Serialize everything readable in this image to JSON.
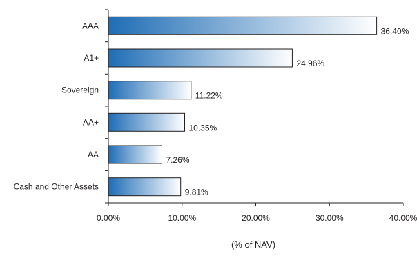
{
  "chart_data": {
    "type": "bar",
    "orientation": "horizontal",
    "categories": [
      "AAA",
      "A1+",
      "Sovereign",
      "AA+",
      "AA",
      "Cash and Other Assets"
    ],
    "values": [
      36.4,
      24.96,
      11.22,
      10.35,
      7.26,
      9.81
    ],
    "value_labels": [
      "36.40%",
      "24.96%",
      "11.22%",
      "10.35%",
      "7.26%",
      "9.81%"
    ],
    "xticks": [
      0,
      10,
      20,
      30,
      40
    ],
    "xtick_labels": [
      "0.00%",
      "10.00%",
      "20.00%",
      "30.00%",
      "40.00%"
    ],
    "xlim": [
      0,
      40
    ],
    "title": "",
    "xlabel": "(% of NAV)",
    "ylabel": "",
    "grid": false,
    "colors": {
      "bar_start": "#1f6db5",
      "bar_end": "#ffffff",
      "bar_stroke": "#231f20",
      "axis": "#231f20",
      "text": "#231f20"
    }
  }
}
